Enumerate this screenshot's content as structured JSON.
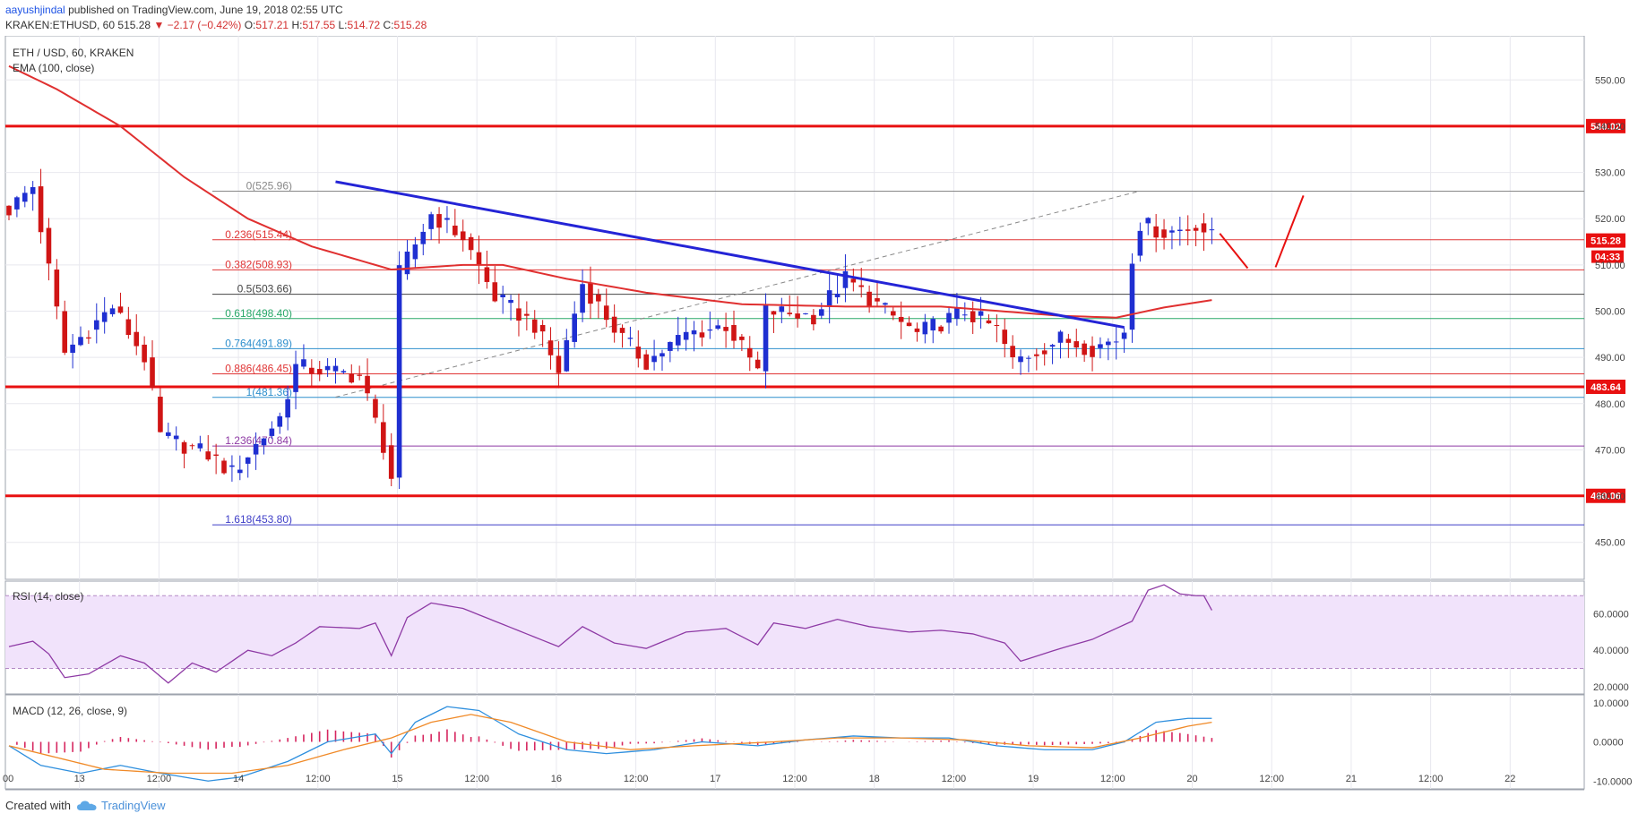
{
  "header": {
    "author": "aayushjindal",
    "published_text": "published on TradingView.com, June 19, 2018 02:55 UTC",
    "symbol_line": "KRAKEN:ETHUSD, 60",
    "last": "515.28",
    "change": "▼ −2.17 (−0.42%)",
    "o_label": "O:",
    "o": "517.21",
    "h_label": "H:",
    "h": "517.55",
    "l_label": "L:",
    "l": "514.72",
    "c_label": "C:",
    "c": "515.28"
  },
  "legend": {
    "title": "ETH / USD, 60, KRAKEN",
    "ema": "EMA (100, close)",
    "rsi": "RSI (14, close)",
    "macd": "MACD (12, 26, close, 9)"
  },
  "footer": {
    "created_with": "Created with",
    "brand": "TradingView"
  },
  "colors": {
    "up": "#1f2fd1",
    "down": "#d01515",
    "ema": "#e03030",
    "trend": "#2424d6",
    "level": "#e81010",
    "rsi": "#8e3aa5",
    "rsi_band": "#f1e3fb",
    "macd": "#2e8fde",
    "signal": "#f08a28",
    "hist": "#d6265f",
    "grid": "#e8e8ee"
  },
  "chart_data": {
    "type": "candlestick",
    "symbol": "ETH/USD",
    "interval": "60",
    "ylim": [
      442,
      558
    ],
    "y_ticks": [
      "550.00",
      "540.00",
      "530.00",
      "520.00",
      "510.00",
      "500.00",
      "490.00",
      "480.00",
      "470.00",
      "460.00",
      "450.00"
    ],
    "x_ticks": [
      "00",
      "13",
      "12:00",
      "14",
      "12:00",
      "15",
      "12:00",
      "16",
      "12:00",
      "17",
      "12:00",
      "18",
      "12:00",
      "19",
      "12:00",
      "20",
      "12:00",
      "21",
      "12:00",
      "22"
    ],
    "horizontal_levels": [
      {
        "value": 540.02,
        "label": "540.02"
      },
      {
        "value": 483.64,
        "label": "483.64"
      },
      {
        "value": 460.06,
        "label": "460.06"
      }
    ],
    "price_tag": {
      "value": 515.28,
      "label": "515.28",
      "countdown": "04:33"
    },
    "fibonacci": [
      {
        "ratio": "0",
        "price": "525.96",
        "value": 525.96,
        "color": "#888888"
      },
      {
        "ratio": "0.236",
        "price": "515.44",
        "value": 515.44,
        "color": "#e03535"
      },
      {
        "ratio": "0.382",
        "price": "508.93",
        "value": 508.93,
        "color": "#e03535"
      },
      {
        "ratio": "0.5",
        "price": "503.66",
        "value": 503.66,
        "color": "#444444"
      },
      {
        "ratio": "0.618",
        "price": "498.40",
        "value": 498.4,
        "color": "#2aa86a"
      },
      {
        "ratio": "0.764",
        "price": "491.89",
        "value": 491.89,
        "color": "#2e8fcd"
      },
      {
        "ratio": "0.886",
        "price": "486.45",
        "value": 486.45,
        "color": "#e03535"
      },
      {
        "ratio": "1",
        "price": "481.36",
        "value": 481.36,
        "color": "#2e8fcd"
      },
      {
        "ratio": "1.236",
        "price": "470.84",
        "value": 470.84,
        "color": "#8e3aa5"
      },
      {
        "ratio": "1.618",
        "price": "453.80",
        "value": 453.8,
        "color": "#3f3fc8"
      }
    ],
    "trendline": {
      "from": {
        "bar": 41,
        "price": 528
      },
      "to": {
        "bar": 140,
        "price": 496.5
      }
    },
    "fib_anchor": {
      "from": {
        "bar": 41,
        "price": 481.4
      },
      "to": {
        "bar": 142,
        "price": 526
      }
    },
    "projection": [
      {
        "from": {
          "bar": 152,
          "price": 516.8
        },
        "to": {
          "bar": 155.5,
          "price": 509.3
        }
      },
      {
        "from": {
          "bar": 159,
          "price": 509.5
        },
        "to": {
          "bar": 162.5,
          "price": 525
        }
      }
    ],
    "candle_keypoints": [
      {
        "bar": 0,
        "price": 522
      },
      {
        "bar": 3,
        "price": 527
      },
      {
        "bar": 5,
        "price": 509
      },
      {
        "bar": 7,
        "price": 491
      },
      {
        "bar": 13,
        "price": 501
      },
      {
        "bar": 17,
        "price": 490
      },
      {
        "bar": 19,
        "price": 473
      },
      {
        "bar": 25,
        "price": 469
      },
      {
        "bar": 28,
        "price": 465
      },
      {
        "bar": 34,
        "price": 477
      },
      {
        "bar": 36,
        "price": 488
      },
      {
        "bar": 44,
        "price": 486
      },
      {
        "bar": 47,
        "price": 471
      },
      {
        "bar": 48,
        "price": 464
      },
      {
        "bar": 49,
        "price": 508
      },
      {
        "bar": 53,
        "price": 521
      },
      {
        "bar": 57,
        "price": 516
      },
      {
        "bar": 61,
        "price": 503
      },
      {
        "bar": 66,
        "price": 497
      },
      {
        "bar": 69,
        "price": 487
      },
      {
        "bar": 72,
        "price": 506
      },
      {
        "bar": 77,
        "price": 494
      },
      {
        "bar": 80,
        "price": 489
      },
      {
        "bar": 85,
        "price": 495
      },
      {
        "bar": 90,
        "price": 497
      },
      {
        "bar": 94,
        "price": 487
      },
      {
        "bar": 95,
        "price": 500
      },
      {
        "bar": 101,
        "price": 499
      },
      {
        "bar": 105,
        "price": 507
      },
      {
        "bar": 110,
        "price": 500
      },
      {
        "bar": 114,
        "price": 495
      },
      {
        "bar": 120,
        "price": 500
      },
      {
        "bar": 124,
        "price": 496
      },
      {
        "bar": 126,
        "price": 489
      },
      {
        "bar": 132,
        "price": 494
      },
      {
        "bar": 136,
        "price": 492
      },
      {
        "bar": 139,
        "price": 494
      },
      {
        "bar": 140,
        "price": 496
      },
      {
        "bar": 141,
        "price": 512
      },
      {
        "bar": 142,
        "price": 519
      },
      {
        "bar": 145,
        "price": 517
      },
      {
        "bar": 148,
        "price": 518
      },
      {
        "bar": 149,
        "price": 519
      },
      {
        "bar": 151,
        "price": 516
      }
    ],
    "ema_keypoints": [
      {
        "bar": 0,
        "value": 553
      },
      {
        "bar": 6,
        "value": 548
      },
      {
        "bar": 14,
        "value": 540
      },
      {
        "bar": 22,
        "value": 529
      },
      {
        "bar": 30,
        "value": 520
      },
      {
        "bar": 38,
        "value": 514
      },
      {
        "bar": 48,
        "value": 509
      },
      {
        "bar": 57,
        "value": 510
      },
      {
        "bar": 62,
        "value": 510
      },
      {
        "bar": 70,
        "value": 507
      },
      {
        "bar": 80,
        "value": 504
      },
      {
        "bar": 92,
        "value": 501.5
      },
      {
        "bar": 105,
        "value": 501
      },
      {
        "bar": 117,
        "value": 501
      },
      {
        "bar": 132,
        "value": 499
      },
      {
        "bar": 139,
        "value": 498.6
      },
      {
        "bar": 145,
        "value": 500.8
      },
      {
        "bar": 151,
        "value": 502.4
      }
    ],
    "rsi": {
      "title": "RSI (14, close)",
      "ylim": [
        16,
        78
      ],
      "ticks": [
        "60.0000",
        "40.0000",
        "20.0000"
      ],
      "band": [
        30,
        70
      ],
      "keypoints": [
        {
          "bar": 0,
          "value": 42
        },
        {
          "bar": 3,
          "value": 45
        },
        {
          "bar": 5,
          "value": 38
        },
        {
          "bar": 7,
          "value": 25
        },
        {
          "bar": 10,
          "value": 27
        },
        {
          "bar": 14,
          "value": 37
        },
        {
          "bar": 17,
          "value": 33
        },
        {
          "bar": 20,
          "value": 22
        },
        {
          "bar": 23,
          "value": 33
        },
        {
          "bar": 26,
          "value": 28
        },
        {
          "bar": 30,
          "value": 40
        },
        {
          "bar": 33,
          "value": 37
        },
        {
          "bar": 36,
          "value": 44
        },
        {
          "bar": 39,
          "value": 53
        },
        {
          "bar": 44,
          "value": 52
        },
        {
          "bar": 46,
          "value": 55
        },
        {
          "bar": 48,
          "value": 37
        },
        {
          "bar": 50,
          "value": 58
        },
        {
          "bar": 53,
          "value": 66
        },
        {
          "bar": 57,
          "value": 63
        },
        {
          "bar": 61,
          "value": 56
        },
        {
          "bar": 65,
          "value": 49
        },
        {
          "bar": 69,
          "value": 42
        },
        {
          "bar": 72,
          "value": 53
        },
        {
          "bar": 76,
          "value": 44
        },
        {
          "bar": 80,
          "value": 41
        },
        {
          "bar": 85,
          "value": 50
        },
        {
          "bar": 90,
          "value": 52
        },
        {
          "bar": 94,
          "value": 43
        },
        {
          "bar": 96,
          "value": 55
        },
        {
          "bar": 100,
          "value": 52
        },
        {
          "bar": 104,
          "value": 57
        },
        {
          "bar": 108,
          "value": 53
        },
        {
          "bar": 113,
          "value": 50
        },
        {
          "bar": 117,
          "value": 51
        },
        {
          "bar": 121,
          "value": 49
        },
        {
          "bar": 125,
          "value": 44
        },
        {
          "bar": 127,
          "value": 34
        },
        {
          "bar": 132,
          "value": 41
        },
        {
          "bar": 136,
          "value": 46
        },
        {
          "bar": 139,
          "value": 52
        },
        {
          "bar": 141,
          "value": 56
        },
        {
          "bar": 143,
          "value": 73
        },
        {
          "bar": 145,
          "value": 76
        },
        {
          "bar": 147,
          "value": 71
        },
        {
          "bar": 149,
          "value": 70
        },
        {
          "bar": 150,
          "value": 70
        },
        {
          "bar": 151,
          "value": 62
        }
      ]
    },
    "macd": {
      "title": "MACD (12, 26, close, 9)",
      "ylim": [
        -12,
        12
      ],
      "ticks": [
        "10.0000",
        "0.0000",
        "-10.0000"
      ],
      "macd_keypoints": [
        {
          "bar": 0,
          "value": -1
        },
        {
          "bar": 4,
          "value": -6
        },
        {
          "bar": 9,
          "value": -8
        },
        {
          "bar": 14,
          "value": -6
        },
        {
          "bar": 19,
          "value": -8
        },
        {
          "bar": 25,
          "value": -10
        },
        {
          "bar": 29,
          "value": -9
        },
        {
          "bar": 35,
          "value": -5
        },
        {
          "bar": 40,
          "value": 0
        },
        {
          "bar": 46,
          "value": 2
        },
        {
          "bar": 48,
          "value": -3
        },
        {
          "bar": 51,
          "value": 5
        },
        {
          "bar": 55,
          "value": 9
        },
        {
          "bar": 59,
          "value": 8
        },
        {
          "bar": 64,
          "value": 2
        },
        {
          "bar": 70,
          "value": -2
        },
        {
          "bar": 75,
          "value": -3
        },
        {
          "bar": 81,
          "value": -2
        },
        {
          "bar": 87,
          "value": 0
        },
        {
          "bar": 94,
          "value": -1
        },
        {
          "bar": 100,
          "value": 0.5
        },
        {
          "bar": 106,
          "value": 1.5
        },
        {
          "bar": 112,
          "value": 1
        },
        {
          "bar": 118,
          "value": 1
        },
        {
          "bar": 124,
          "value": -1
        },
        {
          "bar": 130,
          "value": -2
        },
        {
          "bar": 136,
          "value": -2
        },
        {
          "bar": 140,
          "value": 0
        },
        {
          "bar": 144,
          "value": 5
        },
        {
          "bar": 148,
          "value": 6
        },
        {
          "bar": 151,
          "value": 6
        }
      ],
      "signal_keypoints": [
        {
          "bar": 0,
          "value": -1
        },
        {
          "bar": 6,
          "value": -4
        },
        {
          "bar": 12,
          "value": -7
        },
        {
          "bar": 20,
          "value": -8
        },
        {
          "bar": 28,
          "value": -8
        },
        {
          "bar": 35,
          "value": -6
        },
        {
          "bar": 42,
          "value": -2
        },
        {
          "bar": 48,
          "value": 1
        },
        {
          "bar": 53,
          "value": 5
        },
        {
          "bar": 58,
          "value": 7
        },
        {
          "bar": 63,
          "value": 5
        },
        {
          "bar": 70,
          "value": 0
        },
        {
          "bar": 78,
          "value": -2
        },
        {
          "bar": 86,
          "value": -1
        },
        {
          "bar": 96,
          "value": 0
        },
        {
          "bar": 104,
          "value": 1
        },
        {
          "bar": 112,
          "value": 1
        },
        {
          "bar": 120,
          "value": 0.5
        },
        {
          "bar": 128,
          "value": -1
        },
        {
          "bar": 136,
          "value": -1.5
        },
        {
          "bar": 142,
          "value": 1
        },
        {
          "bar": 148,
          "value": 4
        },
        {
          "bar": 151,
          "value": 5
        }
      ]
    }
  }
}
